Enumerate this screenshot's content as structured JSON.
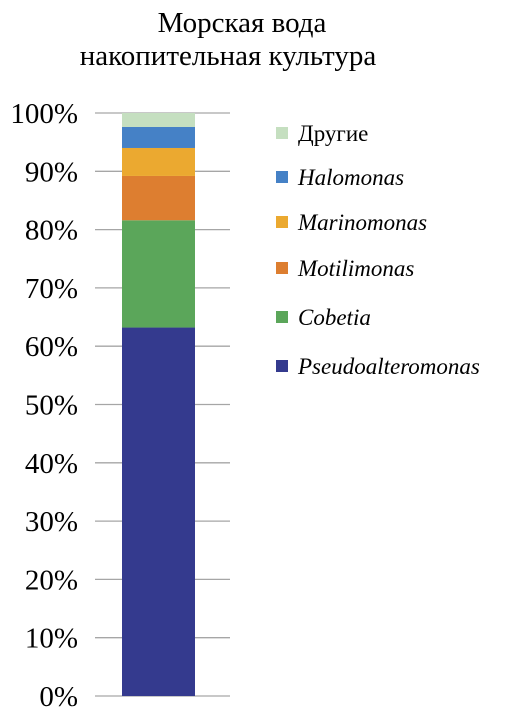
{
  "chart_data": {
    "type": "bar",
    "stacked": true,
    "title": [
      "Морская вода",
      "накопительная культура"
    ],
    "categories": [
      ""
    ],
    "ylim": [
      0,
      100
    ],
    "y_tick_labels": [
      "0%",
      "10%",
      "20%",
      "30%",
      "40%",
      "50%",
      "60%",
      "70%",
      "80%",
      "90%",
      "100%"
    ],
    "y_ticks": [
      0,
      10,
      20,
      30,
      40,
      50,
      60,
      70,
      80,
      90,
      100
    ],
    "grid": true,
    "legend_position": "right",
    "series": [
      {
        "name": "Pseudoalteromonas",
        "values": [
          63.2
        ],
        "color": "#343A8E",
        "italic": true
      },
      {
        "name": "Cobetia",
        "values": [
          18.4
        ],
        "color": "#5BA65A",
        "italic": true
      },
      {
        "name": "Motilimonas",
        "values": [
          7.6
        ],
        "color": "#DD7E30",
        "italic": true
      },
      {
        "name": "Marinomonas",
        "values": [
          4.8
        ],
        "color": "#EBA930",
        "italic": true
      },
      {
        "name": "Halomonas",
        "values": [
          3.6
        ],
        "color": "#4581C6",
        "italic": true
      },
      {
        "name": "Другие",
        "values": [
          2.4
        ],
        "color": "#C5DFC0",
        "italic": false
      }
    ],
    "legend_order": [
      "Другие",
      "Halomonas",
      "Marinomonas",
      "Motilimonas",
      "Cobetia",
      "Pseudoalteromonas"
    ]
  }
}
